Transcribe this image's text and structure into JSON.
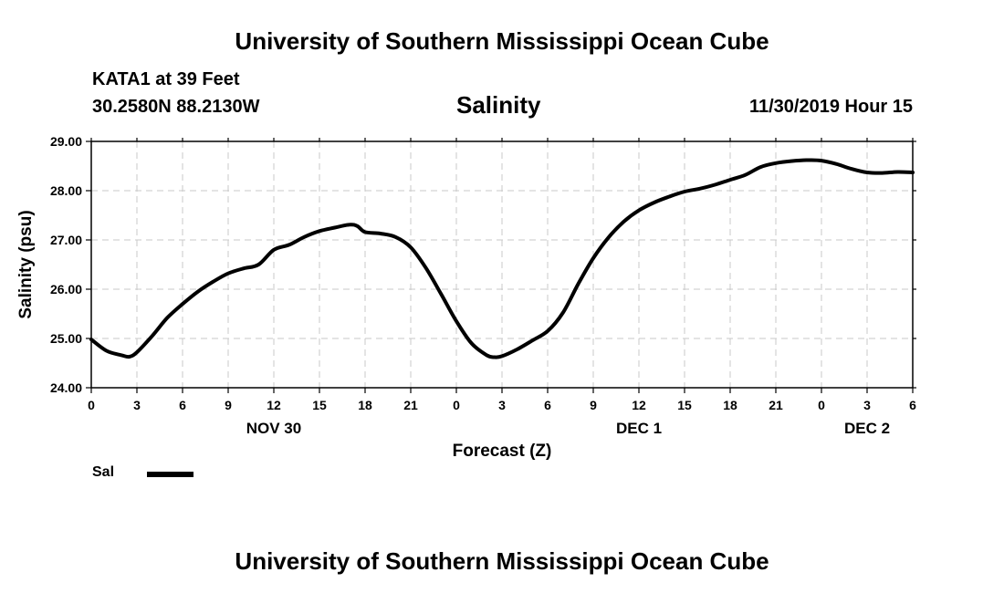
{
  "header": {
    "title": "University of Southern Mississippi Ocean Cube",
    "station": "KATA1 at 39 Feet",
    "coords": "30.2580N 88.2130W",
    "variable": "Salinity",
    "issued": "11/30/2019 Hour 15"
  },
  "footer": {
    "title": "University of Southern Mississippi Ocean Cube"
  },
  "legend": {
    "label": "Sal"
  },
  "chart_data": {
    "type": "line",
    "title": "Salinity",
    "xlabel": "Forecast (Z)",
    "ylabel": "Salinity (psu)",
    "xlim": [
      0,
      54
    ],
    "ylim": [
      24.0,
      29.0
    ],
    "yticks": [
      24.0,
      25.0,
      26.0,
      27.0,
      28.0,
      29.0
    ],
    "ytick_labels": [
      "24.00",
      "25.00",
      "26.00",
      "27.00",
      "28.00",
      "29.00"
    ],
    "xtick_hours": [
      0,
      3,
      6,
      9,
      12,
      15,
      18,
      21,
      24,
      27,
      30,
      33,
      36,
      39,
      42,
      45,
      48,
      51,
      54
    ],
    "xtick_labels": [
      "0",
      "3",
      "6",
      "9",
      "12",
      "15",
      "18",
      "21",
      "0",
      "3",
      "6",
      "9",
      "12",
      "15",
      "18",
      "21",
      "0",
      "3",
      "6"
    ],
    "date_labels": [
      {
        "label": "NOV 30",
        "hour": 12
      },
      {
        "label": "DEC 1",
        "hour": 36
      },
      {
        "label": "DEC 2",
        "hour": 51
      }
    ],
    "grid": true,
    "series": [
      {
        "name": "Sal",
        "color": "#000000",
        "x": [
          0,
          1,
          2,
          2.5,
          3,
          4,
          5,
          6,
          7,
          8,
          9,
          10,
          11,
          12,
          13,
          14,
          15,
          16,
          17,
          17.5,
          18,
          19,
          20,
          21,
          22,
          23,
          24,
          25,
          26,
          26.5,
          27,
          28,
          29,
          30,
          31,
          32,
          33,
          34,
          35,
          36,
          37,
          38,
          39,
          40,
          41,
          42,
          43,
          44,
          45,
          46,
          47,
          48,
          49,
          50,
          51,
          52,
          53,
          54
        ],
        "y": [
          24.98,
          24.75,
          24.66,
          24.63,
          24.72,
          25.05,
          25.42,
          25.7,
          25.95,
          26.15,
          26.32,
          26.42,
          26.5,
          26.8,
          26.9,
          27.06,
          27.18,
          27.25,
          27.31,
          27.28,
          27.16,
          27.13,
          27.06,
          26.85,
          26.43,
          25.9,
          25.35,
          24.9,
          24.66,
          24.62,
          24.64,
          24.78,
          24.96,
          25.15,
          25.52,
          26.1,
          26.63,
          27.05,
          27.37,
          27.6,
          27.76,
          27.88,
          27.98,
          28.04,
          28.12,
          28.22,
          28.32,
          28.48,
          28.56,
          28.6,
          28.62,
          28.61,
          28.54,
          28.44,
          28.37,
          28.36,
          28.38,
          28.37
        ]
      }
    ]
  }
}
